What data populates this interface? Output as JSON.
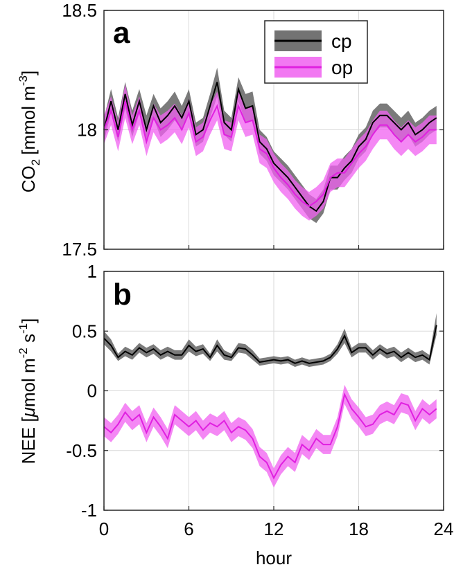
{
  "figure": {
    "xlabel": "hour"
  },
  "colors": {
    "cp_line": "#000000",
    "cp_band": "#5a5a5a",
    "op_line": "#e020e0",
    "op_band": "#f060f0",
    "grid": "#d9d9d9",
    "axis": "#262626"
  },
  "chart_data": [
    {
      "type": "line",
      "panel_label": "a",
      "ylabel_main": "CO",
      "ylabel_sub": "2",
      "ylabel_unit_prefix": "[mmol m",
      "ylabel_unit_sup": "-3",
      "ylabel_unit_suffix": "]",
      "xlim": [
        0,
        24
      ],
      "ylim": [
        17.5,
        18.5
      ],
      "xticks": [
        0,
        6,
        12,
        18,
        24
      ],
      "xtick_labels": [
        "0",
        "6",
        "12",
        "18",
        "24"
      ],
      "yticks": [
        17.5,
        18,
        18.5
      ],
      "ytick_labels": [
        "17.5",
        "18",
        "18.5"
      ],
      "grid": true,
      "legend_position": "top-right",
      "x": [
        0,
        0.5,
        1,
        1.5,
        2,
        2.5,
        3,
        3.5,
        4,
        4.5,
        5,
        5.5,
        6,
        6.5,
        7,
        7.5,
        8,
        8.5,
        9,
        9.5,
        10,
        10.5,
        11,
        11.5,
        12,
        12.5,
        13,
        13.5,
        14,
        14.5,
        15,
        15.5,
        16,
        16.5,
        17,
        17.5,
        18,
        18.5,
        19,
        19.5,
        20,
        20.5,
        21,
        21.5,
        22,
        22.5,
        23,
        23.5
      ],
      "series": [
        {
          "name": "cp",
          "y": [
            18.0,
            18.12,
            18.0,
            18.15,
            18.02,
            18.12,
            18.0,
            18.1,
            18.03,
            18.06,
            18.1,
            18.05,
            18.12,
            17.98,
            18.0,
            18.1,
            18.2,
            18.03,
            18.0,
            18.17,
            18.09,
            18.1,
            17.95,
            17.92,
            17.86,
            17.83,
            17.8,
            17.76,
            17.72,
            17.68,
            17.66,
            17.7,
            17.8,
            17.8,
            17.84,
            17.87,
            17.93,
            17.96,
            18.03,
            18.06,
            18.06,
            18.03,
            18.0,
            18.03,
            17.98,
            18.0,
            18.03,
            18.05
          ],
          "lower": [
            17.95,
            18.07,
            17.95,
            18.09,
            17.97,
            18.07,
            17.94,
            18.05,
            17.97,
            18.0,
            18.04,
            18.0,
            18.07,
            17.93,
            17.95,
            18.05,
            18.14,
            17.98,
            17.95,
            18.12,
            18.03,
            18.04,
            17.9,
            17.87,
            17.81,
            17.78,
            17.75,
            17.71,
            17.67,
            17.63,
            17.61,
            17.65,
            17.75,
            17.75,
            17.79,
            17.82,
            17.88,
            17.91,
            17.98,
            18.01,
            18.01,
            17.98,
            17.95,
            17.98,
            17.93,
            17.95,
            17.98,
            18.0
          ],
          "upper": [
            18.05,
            18.17,
            18.05,
            18.2,
            18.08,
            18.17,
            18.06,
            18.15,
            18.09,
            18.12,
            18.16,
            18.1,
            18.17,
            18.03,
            18.05,
            18.15,
            18.26,
            18.08,
            18.05,
            18.22,
            18.15,
            18.16,
            18.0,
            17.97,
            17.91,
            17.88,
            17.85,
            17.81,
            17.77,
            17.73,
            17.71,
            17.75,
            17.85,
            17.85,
            17.89,
            17.92,
            17.98,
            18.01,
            18.08,
            18.11,
            18.11,
            18.08,
            18.05,
            18.08,
            18.03,
            18.05,
            18.08,
            18.1
          ]
        },
        {
          "name": "op",
          "y": [
            18.0,
            18.08,
            17.97,
            18.12,
            18.0,
            18.08,
            17.95,
            18.05,
            18.0,
            18.02,
            18.05,
            18.0,
            18.07,
            17.95,
            17.97,
            18.04,
            18.1,
            17.98,
            17.97,
            18.1,
            18.03,
            18.04,
            17.92,
            17.9,
            17.84,
            17.8,
            17.77,
            17.73,
            17.7,
            17.68,
            17.7,
            17.73,
            17.8,
            17.82,
            17.82,
            17.86,
            17.9,
            17.93,
            17.98,
            18.02,
            18.02,
            17.98,
            17.95,
            17.98,
            17.95,
            17.97,
            18.0,
            18.0
          ],
          "lower": [
            17.94,
            18.02,
            17.91,
            18.05,
            17.94,
            18.02,
            17.89,
            17.99,
            17.94,
            17.96,
            17.99,
            17.94,
            18.01,
            17.89,
            17.91,
            17.98,
            18.04,
            17.92,
            17.91,
            18.04,
            17.97,
            17.98,
            17.86,
            17.84,
            17.78,
            17.74,
            17.71,
            17.67,
            17.64,
            17.62,
            17.64,
            17.67,
            17.74,
            17.76,
            17.76,
            17.8,
            17.84,
            17.87,
            17.92,
            17.96,
            17.96,
            17.92,
            17.89,
            17.92,
            17.89,
            17.91,
            17.94,
            17.94
          ],
          "upper": [
            18.06,
            18.14,
            18.03,
            18.19,
            18.06,
            18.14,
            18.01,
            18.11,
            18.06,
            18.08,
            18.11,
            18.06,
            18.13,
            18.01,
            18.03,
            18.1,
            18.16,
            18.04,
            18.03,
            18.16,
            18.09,
            18.1,
            17.98,
            17.96,
            17.9,
            17.86,
            17.83,
            17.79,
            17.76,
            17.74,
            17.76,
            17.79,
            17.86,
            17.88,
            17.88,
            17.92,
            17.96,
            17.99,
            18.04,
            18.08,
            18.08,
            18.04,
            18.01,
            18.04,
            18.01,
            18.03,
            18.06,
            18.06
          ]
        }
      ]
    },
    {
      "type": "line",
      "panel_label": "b",
      "ylabel_main": "NEE [",
      "ylabel_mu": "μ",
      "ylabel_unit_a": "mol m",
      "ylabel_unit_sup1": "-2",
      "ylabel_unit_b": " s",
      "ylabel_unit_sup2": "-1",
      "ylabel_unit_suffix": "]",
      "xlim": [
        0,
        24
      ],
      "ylim": [
        -1,
        1
      ],
      "xticks": [
        0,
        6,
        12,
        18,
        24
      ],
      "xtick_labels": [
        "0",
        "6",
        "12",
        "18",
        "24"
      ],
      "yticks": [
        -1,
        -0.5,
        0,
        0.5,
        1
      ],
      "ytick_labels": [
        "-1",
        "-0.5",
        "0",
        "0.5",
        "1"
      ],
      "grid": true,
      "x": [
        0,
        0.5,
        1,
        1.5,
        2,
        2.5,
        3,
        3.5,
        4,
        4.5,
        5,
        5.5,
        6,
        6.5,
        7,
        7.5,
        8,
        8.5,
        9,
        9.5,
        10,
        10.5,
        11,
        11.5,
        12,
        12.5,
        13,
        13.5,
        14,
        14.5,
        15,
        15.5,
        16,
        16.5,
        17,
        17.5,
        18,
        18.5,
        19,
        19.5,
        20,
        20.5,
        21,
        21.5,
        22,
        22.5,
        23,
        23.5
      ],
      "series": [
        {
          "name": "cp",
          "y": [
            0.44,
            0.38,
            0.28,
            0.33,
            0.3,
            0.36,
            0.32,
            0.35,
            0.3,
            0.33,
            0.3,
            0.3,
            0.38,
            0.33,
            0.35,
            0.28,
            0.38,
            0.3,
            0.28,
            0.36,
            0.35,
            0.3,
            0.24,
            0.25,
            0.26,
            0.25,
            0.26,
            0.23,
            0.25,
            0.23,
            0.24,
            0.25,
            0.28,
            0.35,
            0.46,
            0.32,
            0.36,
            0.36,
            0.3,
            0.35,
            0.31,
            0.33,
            0.28,
            0.32,
            0.28,
            0.3,
            0.26,
            0.55
          ],
          "lower": [
            0.39,
            0.33,
            0.25,
            0.29,
            0.26,
            0.32,
            0.28,
            0.31,
            0.26,
            0.29,
            0.26,
            0.26,
            0.33,
            0.29,
            0.31,
            0.25,
            0.33,
            0.26,
            0.25,
            0.32,
            0.31,
            0.26,
            0.21,
            0.22,
            0.23,
            0.22,
            0.23,
            0.2,
            0.22,
            0.2,
            0.21,
            0.22,
            0.25,
            0.31,
            0.4,
            0.28,
            0.32,
            0.32,
            0.26,
            0.31,
            0.27,
            0.29,
            0.24,
            0.28,
            0.24,
            0.26,
            0.22,
            0.47
          ],
          "upper": [
            0.5,
            0.43,
            0.31,
            0.37,
            0.34,
            0.4,
            0.36,
            0.39,
            0.34,
            0.37,
            0.34,
            0.34,
            0.43,
            0.37,
            0.39,
            0.31,
            0.43,
            0.34,
            0.31,
            0.4,
            0.39,
            0.34,
            0.27,
            0.28,
            0.29,
            0.28,
            0.29,
            0.26,
            0.28,
            0.26,
            0.27,
            0.28,
            0.31,
            0.39,
            0.52,
            0.36,
            0.4,
            0.4,
            0.34,
            0.39,
            0.35,
            0.37,
            0.32,
            0.36,
            0.32,
            0.34,
            0.3,
            0.65
          ]
        },
        {
          "name": "op",
          "y": [
            -0.3,
            -0.35,
            -0.28,
            -0.18,
            -0.25,
            -0.2,
            -0.35,
            -0.22,
            -0.3,
            -0.4,
            -0.2,
            -0.25,
            -0.3,
            -0.25,
            -0.33,
            -0.27,
            -0.3,
            -0.25,
            -0.35,
            -0.3,
            -0.33,
            -0.4,
            -0.55,
            -0.6,
            -0.73,
            -0.62,
            -0.55,
            -0.6,
            -0.45,
            -0.5,
            -0.4,
            -0.45,
            -0.45,
            -0.3,
            -0.03,
            -0.15,
            -0.22,
            -0.3,
            -0.28,
            -0.2,
            -0.17,
            -0.2,
            -0.1,
            -0.12,
            -0.25,
            -0.15,
            -0.2,
            -0.15
          ],
          "lower": [
            -0.38,
            -0.43,
            -0.36,
            -0.26,
            -0.33,
            -0.28,
            -0.43,
            -0.3,
            -0.38,
            -0.48,
            -0.28,
            -0.33,
            -0.38,
            -0.33,
            -0.41,
            -0.35,
            -0.38,
            -0.33,
            -0.43,
            -0.38,
            -0.41,
            -0.48,
            -0.63,
            -0.68,
            -0.81,
            -0.7,
            -0.63,
            -0.68,
            -0.53,
            -0.58,
            -0.48,
            -0.53,
            -0.53,
            -0.38,
            -0.11,
            -0.23,
            -0.3,
            -0.38,
            -0.36,
            -0.28,
            -0.25,
            -0.28,
            -0.18,
            -0.2,
            -0.33,
            -0.23,
            -0.28,
            -0.23
          ],
          "upper": [
            -0.22,
            -0.27,
            -0.2,
            -0.1,
            -0.17,
            -0.12,
            -0.27,
            -0.14,
            -0.22,
            -0.32,
            -0.12,
            -0.17,
            -0.22,
            -0.17,
            -0.25,
            -0.19,
            -0.22,
            -0.17,
            -0.27,
            -0.22,
            -0.25,
            -0.32,
            -0.47,
            -0.52,
            -0.65,
            -0.54,
            -0.47,
            -0.52,
            -0.37,
            -0.42,
            -0.32,
            -0.37,
            -0.37,
            -0.22,
            0.05,
            -0.07,
            -0.14,
            -0.22,
            -0.2,
            -0.12,
            -0.09,
            -0.12,
            -0.02,
            -0.04,
            -0.17,
            -0.07,
            -0.12,
            -0.07
          ]
        }
      ]
    }
  ]
}
